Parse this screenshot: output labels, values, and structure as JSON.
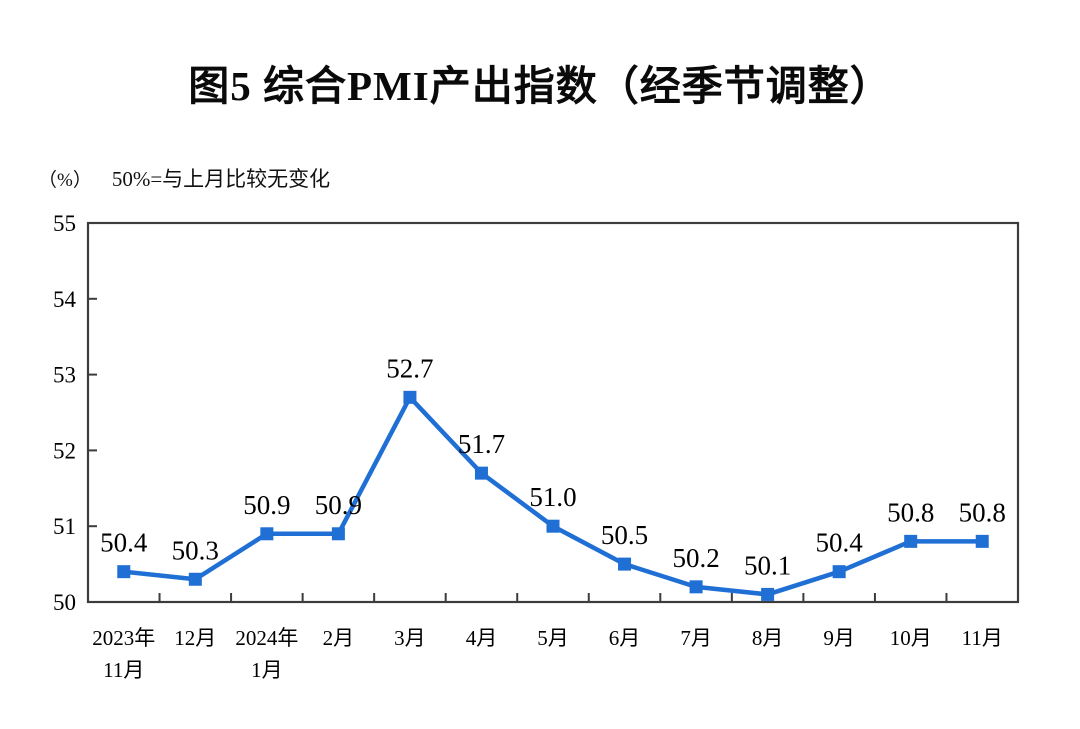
{
  "page": {
    "title": "图5  综合PMI产出指数（经季节调整）"
  },
  "chart_data": {
    "type": "line",
    "title": "图5  综合PMI产出指数（经季节调整）",
    "unit_label": "（%）",
    "note": "50%=与上月比较无变化",
    "categories": [
      [
        "2023年",
        "11月"
      ],
      [
        "12月"
      ],
      [
        "2024年",
        "1月"
      ],
      [
        "2月"
      ],
      [
        "3月"
      ],
      [
        "4月"
      ],
      [
        "5月"
      ],
      [
        "6月"
      ],
      [
        "7月"
      ],
      [
        "8月"
      ],
      [
        "9月"
      ],
      [
        "10月"
      ],
      [
        "11月"
      ]
    ],
    "values": [
      50.4,
      50.3,
      50.9,
      50.9,
      52.7,
      51.7,
      51.0,
      50.5,
      50.2,
      50.1,
      50.4,
      50.8,
      50.8
    ],
    "labels": [
      "50.4",
      "50.3",
      "50.9",
      "50.9",
      "52.7",
      "51.7",
      "51.0",
      "50.5",
      "50.2",
      "50.1",
      "50.4",
      "50.8",
      "50.8"
    ],
    "ylim": [
      50,
      55
    ],
    "yticks": [
      50,
      51,
      52,
      53,
      54,
      55
    ],
    "grid": false,
    "legend": "none",
    "line_color": "#1f6fd4",
    "marker": "square",
    "marker_color": "#1f6fd4",
    "axis_color": "#3c3c3c",
    "label_color": "#000000"
  }
}
